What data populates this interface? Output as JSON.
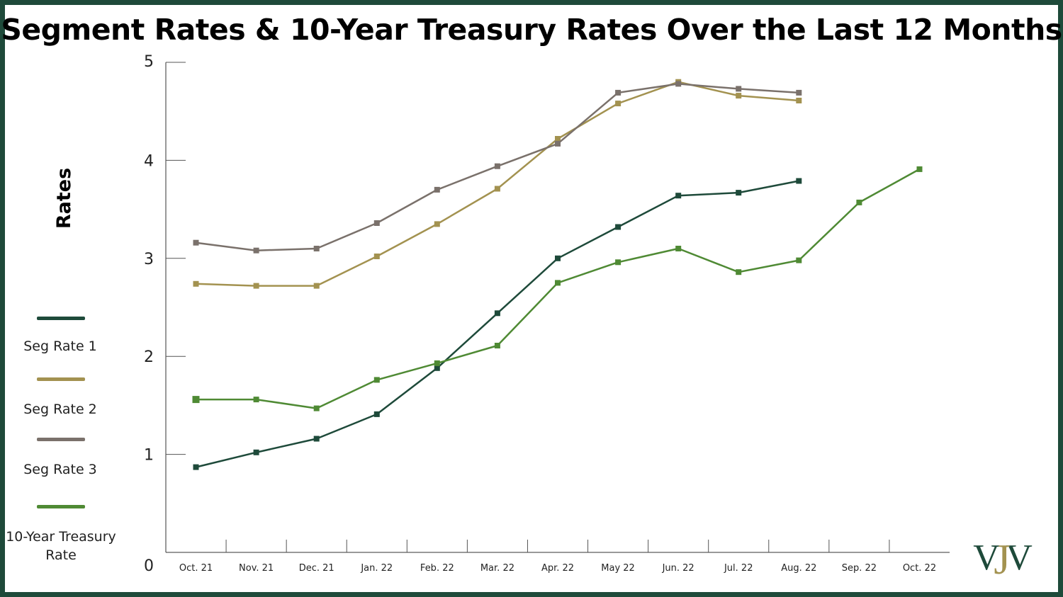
{
  "title": "Segment Rates & 10-Year Treasury Rates Over the Last 12 Months",
  "chart_data": {
    "type": "line",
    "title": "Segment Rates & 10-Year Treasury Rates Over the Last 12 Months",
    "xlabel": "",
    "ylabel": "Rates",
    "ylim": [
      0,
      5
    ],
    "yticks": [
      "0",
      "1",
      "2",
      "3",
      "4",
      "5"
    ],
    "categories": [
      "Oct. 21",
      "Nov. 21",
      "Dec. 21",
      "Jan. 22",
      "Feb. 22",
      "Mar. 22",
      "Apr. 22",
      "May 22",
      "Jun. 22",
      "Jul. 22",
      "Aug. 22",
      "Sep. 22",
      "Oct. 22"
    ],
    "series": [
      {
        "name": "Seg Rate 1",
        "color": "#1e4a3a",
        "values": [
          0.87,
          1.02,
          1.16,
          1.41,
          1.88,
          2.44,
          3.0,
          3.32,
          3.64,
          3.67,
          3.79,
          null,
          null
        ]
      },
      {
        "name": "Seg Rate 2",
        "color": "#a39250",
        "values": [
          2.74,
          2.72,
          2.72,
          3.02,
          3.35,
          3.71,
          4.22,
          4.58,
          4.8,
          4.66,
          4.61,
          null,
          null
        ]
      },
      {
        "name": "Seg Rate 3",
        "color": "#7a716b",
        "values": [
          3.16,
          3.08,
          3.1,
          3.36,
          3.7,
          3.94,
          4.17,
          4.69,
          4.78,
          4.73,
          4.69,
          null,
          null
        ]
      },
      {
        "name": "10-Year Treasury Rate",
        "color": "#4f8a34",
        "values": [
          1.56,
          1.56,
          1.47,
          1.76,
          1.93,
          2.11,
          2.75,
          2.96,
          3.1,
          2.86,
          2.98,
          3.57,
          3.91
        ]
      }
    ],
    "legend": "left"
  },
  "legend": {
    "items": [
      {
        "label": "Seg Rate 1",
        "color": "#1e4a3a"
      },
      {
        "label": "Seg Rate 2",
        "color": "#a39250"
      },
      {
        "label": "Seg Rate 3",
        "color": "#7a716b"
      },
      {
        "label": "10-Year Treasury Rate",
        "color": "#4f8a34"
      }
    ]
  },
  "logo": {
    "name": "VJV-logo",
    "text": "VJV",
    "colors": [
      "#1e4a3a",
      "#a39250"
    ]
  }
}
